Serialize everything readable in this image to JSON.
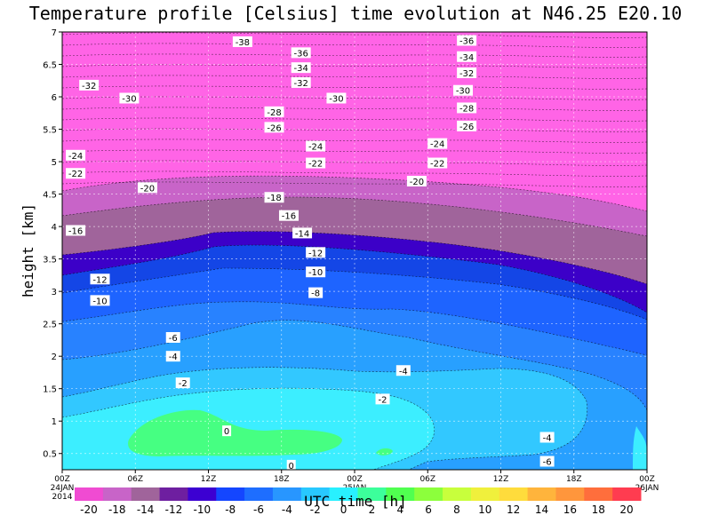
{
  "chart_data": {
    "type": "heatmap",
    "title": "Temperature profile [Celsius] time evolution at N46.25 E20.10",
    "xlabel": "UTC time [h]",
    "ylabel": "height [km]",
    "ylim": [
      0.25,
      7
    ],
    "xlim_hours": [
      0,
      48
    ],
    "y_ticks": [
      "0.5",
      "1",
      "1.5",
      "2",
      "2.5",
      "3",
      "3.5",
      "4",
      "4.5",
      "5",
      "5.5",
      "6",
      "6.5",
      "7"
    ],
    "x_ticks": [
      {
        "label": "00Z",
        "date": "24JAN",
        "year": "2014"
      },
      {
        "label": "06Z",
        "date": "",
        "year": ""
      },
      {
        "label": "12Z",
        "date": "",
        "year": ""
      },
      {
        "label": "18Z",
        "date": "",
        "year": ""
      },
      {
        "label": "00Z",
        "date": "25JAN",
        "year": ""
      },
      {
        "label": "06Z",
        "date": "",
        "year": ""
      },
      {
        "label": "12Z",
        "date": "",
        "year": ""
      },
      {
        "label": "18Z",
        "date": "",
        "year": ""
      },
      {
        "label": "00Z",
        "date": "26JAN",
        "year": ""
      }
    ],
    "grid": true,
    "colorbar": {
      "labels": [
        "-20",
        "-18",
        "-14",
        "-12",
        "-10",
        "-8",
        "-6",
        "-4",
        "-2",
        "0",
        "2",
        "4",
        "6",
        "8",
        "10",
        "12",
        "14",
        "16",
        "18",
        "20"
      ],
      "colors": [
        "#f04bd2",
        "#c864c8",
        "#a0649b",
        "#6e1fa0",
        "#3c00d2",
        "#1446ff",
        "#1e6eff",
        "#2896ff",
        "#28c8ff",
        "#28f0ff",
        "#3cff9b",
        "#50ff50",
        "#8cff3c",
        "#c8ff3c",
        "#f0f03c",
        "#ffdc3c",
        "#ffb43c",
        "#ff963c",
        "#ff6e3c",
        "#ff3c50"
      ]
    },
    "zone_colors": {
      "le_-20": "#ff64e6",
      "-20_-18": "#c864c8",
      "-18_-14": "#a0649b",
      "-14_-12": "#3c00c8",
      "-12_-10": "#1446e6",
      "-10_-8": "#1e64ff",
      "-8_-6": "#2882ff",
      "-6_-4": "#28a0ff",
      "-4_-2": "#32c8ff",
      "-2_0": "#3ceeff",
      "0_2": "#46ff82"
    },
    "contour_labels": [
      {
        "text": "-38",
        "t": 14.8,
        "h": 6.85
      },
      {
        "text": "-36",
        "t": 19.6,
        "h": 6.68
      },
      {
        "text": "-34",
        "t": 19.6,
        "h": 6.45
      },
      {
        "text": "-32",
        "t": 19.6,
        "h": 6.22
      },
      {
        "text": "-30",
        "t": 22.5,
        "h": 5.98
      },
      {
        "text": "-28",
        "t": 17.4,
        "h": 5.77
      },
      {
        "text": "-26",
        "t": 17.4,
        "h": 5.53
      },
      {
        "text": "-24",
        "t": 20.8,
        "h": 5.24
      },
      {
        "text": "-22",
        "t": 20.8,
        "h": 4.98
      },
      {
        "text": "-20",
        "t": 29.1,
        "h": 4.7
      },
      {
        "text": "-18",
        "t": 17.4,
        "h": 4.45
      },
      {
        "text": "-16",
        "t": 18.6,
        "h": 4.17
      },
      {
        "text": "-14",
        "t": 19.7,
        "h": 3.9
      },
      {
        "text": "-12",
        "t": 20.8,
        "h": 3.6
      },
      {
        "text": "-10",
        "t": 20.8,
        "h": 3.3
      },
      {
        "text": "-8",
        "t": 20.8,
        "h": 2.98
      },
      {
        "text": "-6",
        "t": 9.1,
        "h": 2.29
      },
      {
        "text": "-4",
        "t": 9.1,
        "h": 2.0
      },
      {
        "text": "-2",
        "t": 9.9,
        "h": 1.59
      },
      {
        "text": "0",
        "t": 13.5,
        "h": 0.85
      },
      {
        "text": "0",
        "t": 18.8,
        "h": 0.32
      },
      {
        "text": "-36",
        "t": 33.2,
        "h": 6.87
      },
      {
        "text": "-34",
        "t": 33.2,
        "h": 6.62
      },
      {
        "text": "-32",
        "t": 33.2,
        "h": 6.37
      },
      {
        "text": "-30",
        "t": 32.9,
        "h": 6.1
      },
      {
        "text": "-28",
        "t": 33.2,
        "h": 5.83
      },
      {
        "text": "-26",
        "t": 33.2,
        "h": 5.55
      },
      {
        "text": "-24",
        "t": 30.8,
        "h": 5.28
      },
      {
        "text": "-22",
        "t": 30.8,
        "h": 4.98
      },
      {
        "text": "-4",
        "t": 28.0,
        "h": 1.78
      },
      {
        "text": "-2",
        "t": 26.3,
        "h": 1.34
      },
      {
        "text": "-4",
        "t": 39.8,
        "h": 0.75
      },
      {
        "text": "-6",
        "t": 39.8,
        "h": 0.38
      },
      {
        "text": "-32",
        "t": 2.2,
        "h": 6.18
      },
      {
        "text": "-30",
        "t": 5.5,
        "h": 5.98
      },
      {
        "text": "-24",
        "t": 1.1,
        "h": 5.1
      },
      {
        "text": "-22",
        "t": 1.1,
        "h": 4.82
      },
      {
        "text": "-20",
        "t": 7.0,
        "h": 4.6
      },
      {
        "text": "-16",
        "t": 1.1,
        "h": 3.94
      },
      {
        "text": "-12",
        "t": 3.1,
        "h": 3.19
      },
      {
        "text": "-10",
        "t": 3.1,
        "h": 2.86
      }
    ]
  }
}
